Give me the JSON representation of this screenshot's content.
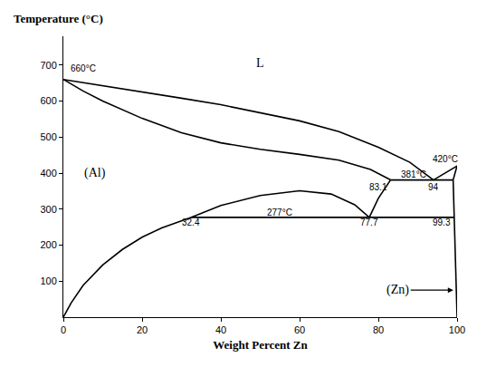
{
  "chart_data": {
    "type": "line",
    "xlabel": "Weight Percent Zn",
    "ylabel": "Temperature (°C)",
    "xlim": [
      0,
      100
    ],
    "ylim": [
      0,
      780
    ],
    "xticks": [
      0,
      20,
      40,
      60,
      80,
      100
    ],
    "yticks": [
      100,
      200,
      300,
      400,
      500,
      600,
      700
    ],
    "grid": false,
    "color": "#000000",
    "series": [
      {
        "x": [
          0,
          10,
          20,
          30,
          40,
          50,
          60,
          70,
          80,
          88,
          94
        ],
        "values": [
          660,
          643,
          625,
          608,
          590,
          568,
          545,
          515,
          472,
          430,
          381
        ]
      },
      {
        "x": [
          94,
          97,
          100
        ],
        "values": [
          381,
          400,
          420
        ]
      },
      {
        "x": [
          0,
          5,
          10,
          20,
          30,
          40,
          50,
          60,
          70,
          78,
          83.1
        ],
        "values": [
          660,
          628,
          600,
          552,
          512,
          484,
          466,
          452,
          436,
          410,
          381
        ]
      },
      {
        "x": [
          83.1,
          99
        ],
        "values": [
          381,
          381
        ]
      },
      {
        "x": [
          100,
          99.5,
          99
        ],
        "values": [
          420,
          400,
          381
        ]
      },
      {
        "x": [
          77.7,
          80,
          83.1
        ],
        "values": [
          277,
          330,
          381
        ]
      },
      {
        "x": [
          32.4,
          40,
          50,
          60,
          68,
          74,
          77.7
        ],
        "values": [
          277,
          310,
          338,
          351,
          342,
          312,
          277
        ]
      },
      {
        "x": [
          32.4,
          99.3
        ],
        "values": [
          277,
          277
        ]
      },
      {
        "x": [
          32.4,
          30,
          25,
          20,
          15,
          10,
          5,
          2,
          0
        ],
        "values": [
          277,
          268,
          248,
          222,
          188,
          145,
          88,
          40,
          0
        ]
      },
      {
        "x": [
          99,
          99.3,
          99.5,
          99.7,
          100
        ],
        "values": [
          381,
          277,
          200,
          100,
          0
        ]
      }
    ],
    "annotations": [
      {
        "text": "660°C",
        "x": 5,
        "y": 690
      },
      {
        "text": "L",
        "x": 50,
        "y": 705
      },
      {
        "text": "(Al)",
        "x": 8,
        "y": 400
      },
      {
        "text": "381°C",
        "x": 89,
        "y": 396
      },
      {
        "text": "83.1",
        "x": 80,
        "y": 362
      },
      {
        "text": "94",
        "x": 94,
        "y": 362
      },
      {
        "text": "420°C",
        "x": 97,
        "y": 440
      },
      {
        "text": "277°C",
        "x": 55,
        "y": 290
      },
      {
        "text": "32.4",
        "x": 32.4,
        "y": 262
      },
      {
        "text": "77.7",
        "x": 77.7,
        "y": 262
      },
      {
        "text": "99.3",
        "x": 96,
        "y": 262
      },
      {
        "text": "(Zn)",
        "x": 85,
        "y": 75,
        "arrow_to": [
          99.5,
          75
        ]
      }
    ]
  }
}
